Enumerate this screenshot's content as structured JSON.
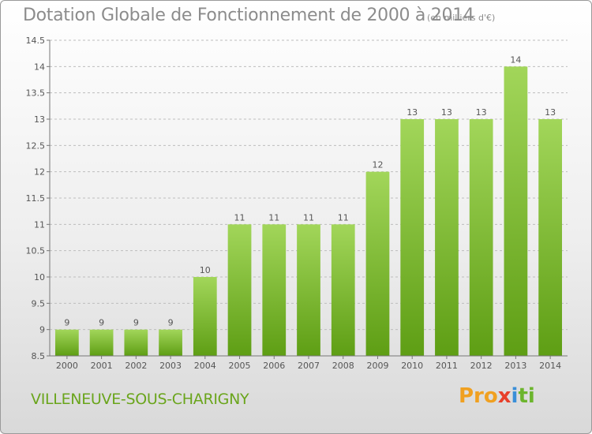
{
  "header": {
    "title": "Dotation Globale de Fonctionnement de 2000 à 2014",
    "subtitle": "(en milliers d'€)"
  },
  "footer": {
    "commune": "VILLENEUVE-SOUS-CHARIGNY",
    "logo": {
      "parts": [
        "Pro",
        "x",
        "i",
        "ti"
      ]
    }
  },
  "colors": {
    "bar_light": "#a2d65a",
    "bar_dark": "#5e9e14",
    "grid": "#bdbdbd",
    "axis": "#777777"
  },
  "chart_data": {
    "type": "bar",
    "title": "Dotation Globale de Fonctionnement de 2000 à 2014",
    "xlabel": "",
    "ylabel": "",
    "categories": [
      "2000",
      "2001",
      "2002",
      "2003",
      "2004",
      "2005",
      "2006",
      "2007",
      "2008",
      "2009",
      "2010",
      "2011",
      "2012",
      "2013",
      "2014"
    ],
    "values": [
      9,
      9,
      9,
      9,
      10,
      11,
      11,
      11,
      11,
      12,
      13,
      13,
      13,
      14,
      13
    ],
    "value_labels": [
      "9",
      "9",
      "9",
      "9",
      "10",
      "11",
      "11",
      "11",
      "11",
      "12",
      "13",
      "13",
      "13",
      "14",
      "13"
    ],
    "ylim": [
      8.5,
      14.5
    ],
    "yticks": [
      8.5,
      9,
      9.5,
      10,
      10.5,
      11,
      11.5,
      12,
      12.5,
      13,
      13.5,
      14,
      14.5
    ],
    "ytick_labels": [
      "8.5",
      "9",
      "9.5",
      "10",
      "10.5",
      "11",
      "11.5",
      "12",
      "12.5",
      "13",
      "13.5",
      "14",
      "14.5"
    ],
    "grid": true,
    "legend": "none"
  }
}
